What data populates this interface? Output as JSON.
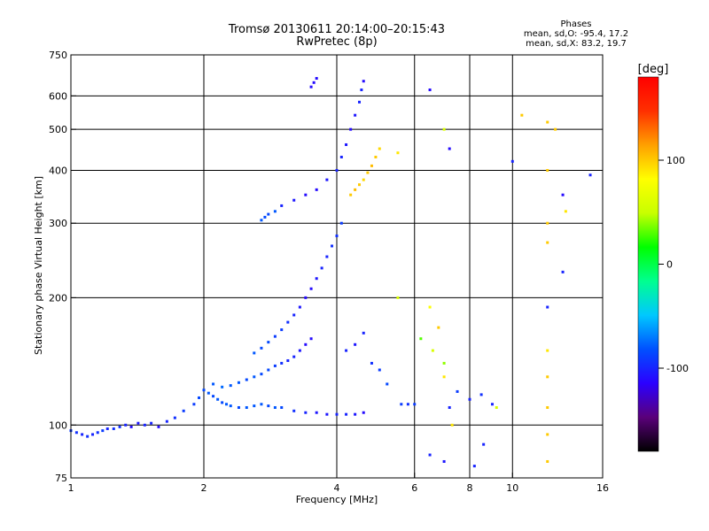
{
  "header": {
    "title": "Tromsø 20130611 20:14:00–20:15:43",
    "subtitle": "RwPretec (8p)",
    "legend_title": "Phases",
    "legend_o": "mean, sd,O: -95.4, 17.2",
    "legend_x": "mean, sd,X:  83.2, 19.7"
  },
  "colorbar": {
    "label": "[deg]",
    "ticks": [
      {
        "value": 100,
        "label": "100"
      },
      {
        "value": 0,
        "label": "0"
      },
      {
        "value": -100,
        "label": "-100"
      }
    ],
    "range": [
      -180,
      180
    ],
    "stops": [
      "#000000",
      "#5a007a",
      "#2b00ff",
      "#0050ff",
      "#00c8ff",
      "#00ff90",
      "#00ff00",
      "#c8ff00",
      "#ffff00",
      "#ffa000",
      "#ff3000",
      "#ff0000"
    ]
  },
  "chart_data": {
    "type": "scatter",
    "xlabel": "Frequency [MHz]",
    "ylabel": "Stationary phase Virtual Height [km]",
    "xscale": "log",
    "yscale": "log",
    "xlim": [
      1,
      16
    ],
    "ylim": [
      75,
      750
    ],
    "xticks": [
      1,
      2,
      4,
      6,
      8,
      10,
      16
    ],
    "xtick_labels": [
      "1",
      "2",
      "4",
      "6",
      "8",
      "10",
      "16"
    ],
    "yticks": [
      75,
      100,
      200,
      300,
      400,
      500,
      600,
      750
    ],
    "ytick_labels": [
      "75",
      "100",
      "200",
      "300",
      "400",
      "500",
      "600",
      "750"
    ],
    "xgrid": [
      2,
      4,
      6,
      8,
      10
    ],
    "ygrid": [
      100,
      200,
      300,
      400,
      500,
      600
    ],
    "series": [
      {
        "points": [
          [
            1.0,
            97,
            -90
          ],
          [
            1.03,
            96,
            -95
          ],
          [
            1.06,
            95,
            -100
          ],
          [
            1.09,
            94,
            -95
          ],
          [
            1.12,
            95,
            -100
          ],
          [
            1.15,
            96,
            -95
          ],
          [
            1.18,
            97,
            -90
          ],
          [
            1.21,
            98,
            -100
          ],
          [
            1.25,
            98,
            -95
          ],
          [
            1.29,
            99,
            -95
          ],
          [
            1.33,
            100,
            -100
          ],
          [
            1.37,
            99,
            -110
          ],
          [
            1.42,
            101,
            -105
          ],
          [
            1.47,
            100,
            -100
          ],
          [
            1.52,
            101,
            -100
          ],
          [
            1.58,
            99,
            -110
          ],
          [
            1.65,
            102,
            -100
          ],
          [
            1.72,
            104,
            -95
          ],
          [
            1.8,
            108,
            -90
          ],
          [
            1.9,
            112,
            -90
          ],
          [
            1.95,
            116,
            -85
          ],
          [
            2.0,
            121,
            -85
          ],
          [
            2.05,
            119,
            -80
          ],
          [
            2.1,
            117,
            -85
          ],
          [
            2.15,
            115,
            -80
          ],
          [
            2.2,
            113,
            -85
          ],
          [
            2.25,
            112,
            -80
          ],
          [
            2.3,
            111,
            -80
          ],
          [
            2.4,
            110,
            -85
          ],
          [
            2.5,
            110,
            -80
          ],
          [
            2.6,
            111,
            -80
          ],
          [
            2.7,
            112,
            -80
          ],
          [
            2.8,
            111,
            -85
          ],
          [
            2.9,
            110,
            -80
          ],
          [
            3.0,
            110,
            -85
          ],
          [
            3.2,
            108,
            -95
          ],
          [
            3.4,
            107,
            -100
          ],
          [
            3.6,
            107,
            -105
          ],
          [
            3.8,
            106,
            -105
          ],
          [
            4.0,
            106,
            -100
          ],
          [
            4.2,
            106,
            -100
          ],
          [
            4.4,
            106,
            -105
          ],
          [
            4.6,
            107,
            -110
          ],
          [
            2.1,
            125,
            -80
          ],
          [
            2.2,
            123,
            -75
          ],
          [
            2.3,
            124,
            -80
          ],
          [
            2.4,
            126,
            -80
          ],
          [
            2.5,
            128,
            -85
          ],
          [
            2.6,
            130,
            -80
          ],
          [
            2.7,
            132,
            -85
          ],
          [
            2.8,
            135,
            -85
          ],
          [
            2.9,
            138,
            -90
          ],
          [
            3.0,
            140,
            -95
          ],
          [
            3.1,
            142,
            -100
          ],
          [
            3.2,
            145,
            -100
          ],
          [
            3.3,
            150,
            -105
          ],
          [
            3.4,
            155,
            -110
          ],
          [
            3.5,
            160,
            -110
          ],
          [
            2.6,
            148,
            -80
          ],
          [
            2.7,
            152,
            -85
          ],
          [
            2.8,
            157,
            -85
          ],
          [
            2.9,
            162,
            -90
          ],
          [
            3.0,
            168,
            -90
          ],
          [
            3.1,
            175,
            -95
          ],
          [
            3.2,
            182,
            -100
          ],
          [
            3.3,
            190,
            -105
          ],
          [
            3.4,
            200,
            -110
          ],
          [
            3.5,
            210,
            -110
          ],
          [
            3.6,
            222,
            -105
          ],
          [
            3.7,
            235,
            -100
          ],
          [
            3.8,
            250,
            -100
          ],
          [
            3.9,
            265,
            -95
          ],
          [
            4.0,
            280,
            -95
          ],
          [
            4.1,
            300,
            -90
          ],
          [
            3.0,
            330,
            -100
          ],
          [
            3.2,
            340,
            -105
          ],
          [
            3.4,
            350,
            -110
          ],
          [
            3.6,
            360,
            -110
          ],
          [
            3.8,
            380,
            -105
          ],
          [
            4.0,
            400,
            -100
          ],
          [
            4.1,
            430,
            -100
          ],
          [
            4.2,
            460,
            -105
          ],
          [
            4.3,
            500,
            -110
          ],
          [
            4.4,
            540,
            -105
          ],
          [
            4.5,
            580,
            -100
          ],
          [
            4.55,
            620,
            -100
          ],
          [
            4.6,
            650,
            -110
          ],
          [
            3.5,
            630,
            -110
          ],
          [
            3.55,
            645,
            -110
          ],
          [
            3.6,
            660,
            -110
          ],
          [
            2.8,
            315,
            -85
          ],
          [
            2.9,
            320,
            -80
          ],
          [
            2.75,
            310,
            -85
          ],
          [
            2.7,
            305,
            -80
          ],
          [
            4.3,
            350,
            100
          ],
          [
            4.4,
            360,
            105
          ],
          [
            4.5,
            370,
            100
          ],
          [
            4.6,
            380,
            95
          ],
          [
            4.7,
            395,
            100
          ],
          [
            4.8,
            410,
            105
          ],
          [
            4.9,
            430,
            100
          ],
          [
            5.0,
            450,
            95
          ],
          [
            4.2,
            150,
            -100
          ],
          [
            4.4,
            155,
            -105
          ],
          [
            4.6,
            165,
            -100
          ],
          [
            4.8,
            140,
            -95
          ],
          [
            5.0,
            135,
            -90
          ],
          [
            5.2,
            125,
            -85
          ],
          [
            5.6,
            112,
            -90
          ],
          [
            5.8,
            112,
            -95
          ],
          [
            6.0,
            112,
            -90
          ],
          [
            5.5,
            200,
            60
          ],
          [
            6.5,
            190,
            80
          ],
          [
            6.8,
            170,
            100
          ],
          [
            7.0,
            130,
            90
          ],
          [
            7.2,
            110,
            -100
          ],
          [
            7.5,
            120,
            -90
          ],
          [
            8.0,
            115,
            -100
          ],
          [
            8.5,
            118,
            -95
          ],
          [
            9.0,
            112,
            -100
          ],
          [
            6.5,
            85,
            -100
          ],
          [
            7.0,
            82,
            -105
          ],
          [
            8.2,
            80,
            -100
          ],
          [
            8.6,
            90,
            -100
          ],
          [
            9.2,
            110,
            60
          ],
          [
            10.0,
            420,
            -100
          ],
          [
            10.5,
            540,
            100
          ],
          [
            12.0,
            520,
            100
          ],
          [
            12.5,
            500,
            100
          ],
          [
            12.0,
            400,
            100
          ],
          [
            12.0,
            300,
            100
          ],
          [
            12.0,
            270,
            100
          ],
          [
            12.0,
            190,
            -100
          ],
          [
            12.0,
            150,
            90
          ],
          [
            12.0,
            130,
            100
          ],
          [
            12.0,
            110,
            100
          ],
          [
            12.0,
            95,
            100
          ],
          [
            12.0,
            82,
            100
          ],
          [
            13.0,
            350,
            -110
          ],
          [
            13.2,
            320,
            90
          ],
          [
            13.0,
            230,
            -100
          ],
          [
            15.0,
            390,
            -100
          ],
          [
            5.5,
            440,
            90
          ],
          [
            7.0,
            500,
            60
          ],
          [
            6.5,
            620,
            -110
          ],
          [
            7.2,
            450,
            -110
          ],
          [
            7.0,
            140,
            40
          ],
          [
            7.3,
            100,
            90
          ],
          [
            6.6,
            150,
            60
          ],
          [
            6.2,
            160,
            30
          ]
        ]
      }
    ]
  }
}
